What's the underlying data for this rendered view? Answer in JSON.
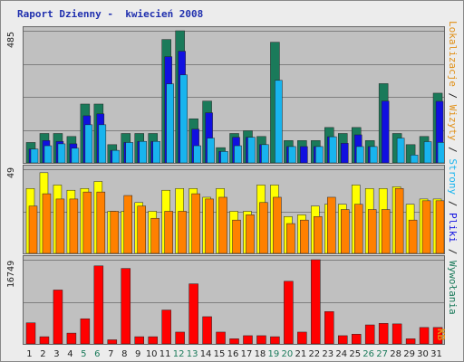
{
  "title": "Raport Dzienny -  kwiecień 2008",
  "colors": {
    "odwiedziny": "#1a7a5a",
    "strony": "#1010e0",
    "pliki": "#18b4ee",
    "wywolania": "#1a7a5a",
    "lokalizacje": "#ffff00",
    "wizyty": "#ff8000",
    "kb": "#ff0000",
    "weekend_label": "#1a7a5a",
    "weekday_label": "#222222",
    "legend_separator": "#222222"
  },
  "legend": {
    "lokalizacje": "Lokalizacje",
    "wizyty": "Wizyty",
    "strony": "Strony",
    "pliki": "Pliki",
    "wywolania": "Wywołania",
    "kb": "KB",
    "separator": " / "
  },
  "chart_data": [
    {
      "type": "bar",
      "name": "hits-pages-files",
      "ymax_label": "485",
      "ylim": [
        0,
        485
      ],
      "categories": [
        "1",
        "2",
        "3",
        "4",
        "5",
        "6",
        "7",
        "8",
        "9",
        "10",
        "11",
        "12",
        "13",
        "14",
        "15",
        "16",
        "17",
        "18",
        "19",
        "20",
        "21",
        "22",
        "23",
        "24",
        "25",
        "26",
        "27",
        "28",
        "29",
        "30",
        "31"
      ],
      "series": [
        {
          "name": "Wywołania",
          "values": [
            75,
            108,
            108,
            97,
            216,
            216,
            67,
            108,
            108,
            108,
            453,
            485,
            162,
            227,
            56,
            108,
            118,
            97,
            443,
            82,
            82,
            82,
            130,
            108,
            130,
            82,
            291,
            108,
            67,
            97,
            256
          ]
        },
        {
          "name": "Strony",
          "values": [
            51,
            82,
            79,
            70,
            173,
            180,
            46,
            75,
            79,
            79,
            390,
            410,
            124,
            184,
            42,
            94,
            94,
            67,
            0,
            60,
            60,
            60,
            96,
            72,
            103,
            60,
            227,
            0,
            0,
            0,
            226
          ]
        },
        {
          "name": "Pliki",
          "values": [
            51,
            63,
            70,
            54,
            140,
            140,
            46,
            75,
            79,
            79,
            290,
            323,
            63,
            91,
            42,
            63,
            94,
            67,
            303,
            60,
            0,
            60,
            96,
            0,
            60,
            60,
            0,
            91,
            29,
            78,
            75
          ]
        }
      ],
      "xlabel": "",
      "ylabel": "",
      "grid": true
    },
    {
      "type": "bar",
      "name": "sites-visits",
      "ymax_label": "49",
      "ylim": [
        0,
        49
      ],
      "categories": [
        "1",
        "2",
        "3",
        "4",
        "5",
        "6",
        "7",
        "8",
        "9",
        "10",
        "11",
        "12",
        "13",
        "14",
        "15",
        "16",
        "17",
        "18",
        "19",
        "20",
        "21",
        "22",
        "23",
        "24",
        "25",
        "26",
        "27",
        "28",
        "29",
        "30",
        "31"
      ],
      "series": [
        {
          "name": "Lokalizacje",
          "values": [
            37,
            46,
            39,
            36,
            37,
            41,
            24,
            24,
            29,
            24,
            36,
            37,
            37,
            32,
            37,
            24,
            24,
            39,
            39,
            21,
            22,
            27,
            28,
            28,
            39,
            37,
            37,
            38,
            28,
            31,
            31
          ]
        },
        {
          "name": "Wizyty",
          "values": [
            27,
            34,
            31,
            31,
            35,
            35,
            24,
            33,
            27,
            20,
            24,
            24,
            34,
            31,
            32,
            19,
            22,
            29,
            32,
            17,
            19,
            21,
            32,
            25,
            28,
            25,
            25,
            37,
            19,
            30,
            30
          ]
        }
      ],
      "xlabel": "",
      "ylabel": "",
      "grid": true
    },
    {
      "type": "bar",
      "name": "kbytes",
      "ymax_label": "16749",
      "ylim": [
        0,
        16749
      ],
      "categories": [
        "1",
        "2",
        "3",
        "4",
        "5",
        "6",
        "7",
        "8",
        "9",
        "10",
        "11",
        "12",
        "13",
        "14",
        "15",
        "16",
        "17",
        "18",
        "19",
        "20",
        "21",
        "22",
        "23",
        "24",
        "25",
        "26",
        "27",
        "28",
        "29",
        "30",
        "31"
      ],
      "series": [
        {
          "name": "KB",
          "values": [
            4100,
            1400,
            10500,
            2100,
            4900,
            15200,
            800,
            14700,
            1400,
            1400,
            6600,
            2300,
            11700,
            5300,
            2300,
            1000,
            1600,
            1600,
            1400,
            12200,
            2300,
            16400,
            6300,
            1600,
            1900,
            3700,
            4000,
            3900,
            1000,
            3200,
            3200
          ]
        }
      ],
      "xlabel": "",
      "ylabel": "",
      "grid": true
    }
  ],
  "xaxis": {
    "weekend_days": [
      "5",
      "6",
      "12",
      "13",
      "19",
      "20",
      "26",
      "27"
    ]
  }
}
